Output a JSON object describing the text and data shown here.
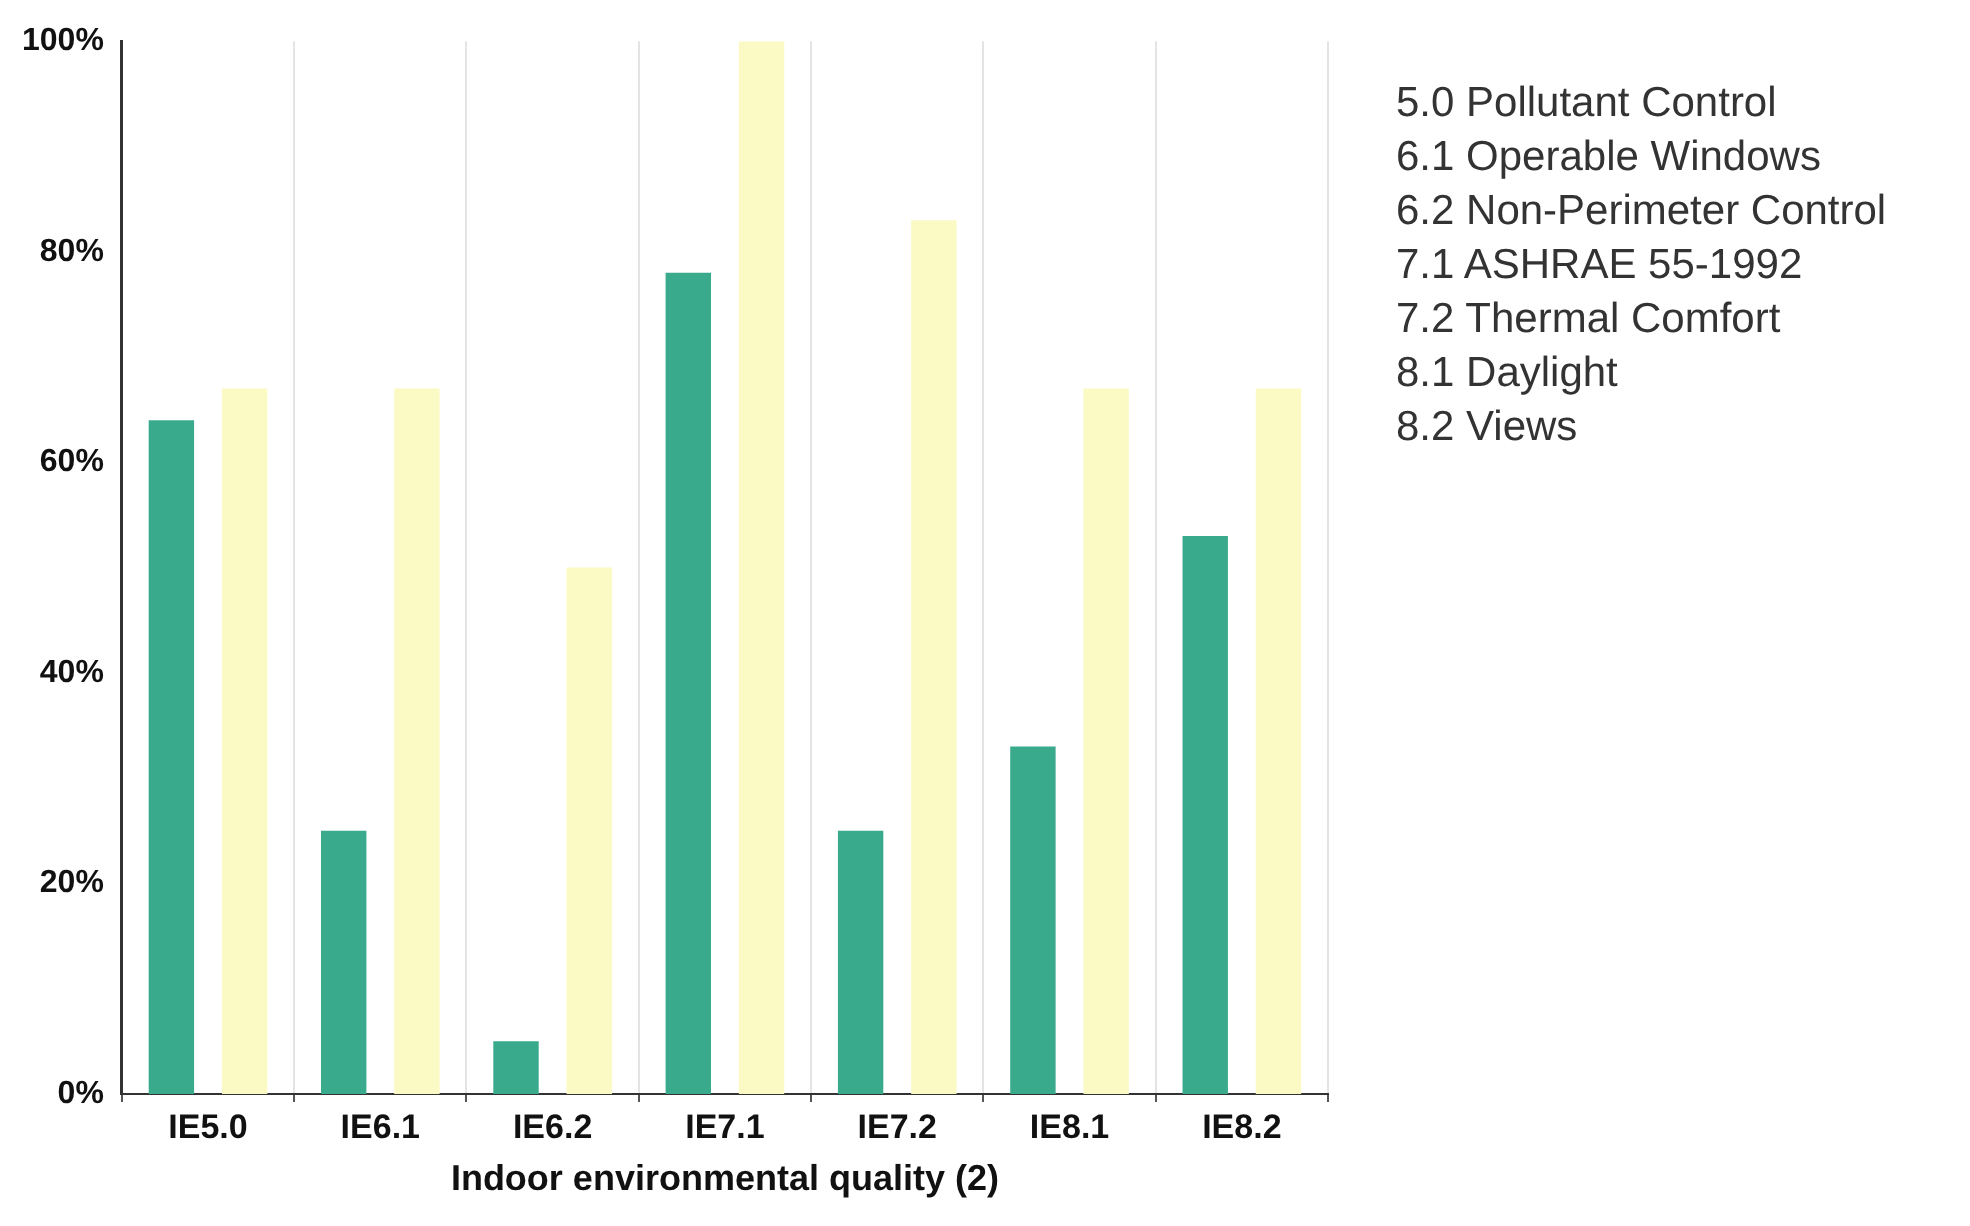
{
  "chart_data": {
    "type": "bar",
    "xlabel": "Indoor environmental quality (2)",
    "categories": [
      "IE5.0",
      "IE6.1",
      "IE6.2",
      "IE7.1",
      "IE7.2",
      "IE8.1",
      "IE8.2"
    ],
    "series": [
      {
        "color": "#3aaa8c",
        "values": [
          64,
          25,
          5,
          78,
          25,
          33,
          53
        ]
      },
      {
        "color": "#fbfac4",
        "values": [
          67,
          67,
          50,
          100,
          83,
          67,
          67
        ]
      }
    ],
    "ylim": [
      0,
      100
    ],
    "yticks": [
      {
        "value": 0,
        "label": "0%"
      },
      {
        "value": 20,
        "label": "20%"
      },
      {
        "value": 40,
        "label": "40%"
      },
      {
        "value": 60,
        "label": "60%"
      },
      {
        "value": 80,
        "label": "80%"
      },
      {
        "value": 100,
        "label": "100%"
      }
    ],
    "grid": "x",
    "legend": false,
    "annotations": [
      "5.0 Pollutant Control",
      "6.1 Operable Windows",
      "6.2 Non-Perimeter Control",
      "7.1 ASHRAE 55-1992",
      "7.2 Thermal Comfort",
      "8.1 Daylight",
      "8.2 Views"
    ]
  }
}
